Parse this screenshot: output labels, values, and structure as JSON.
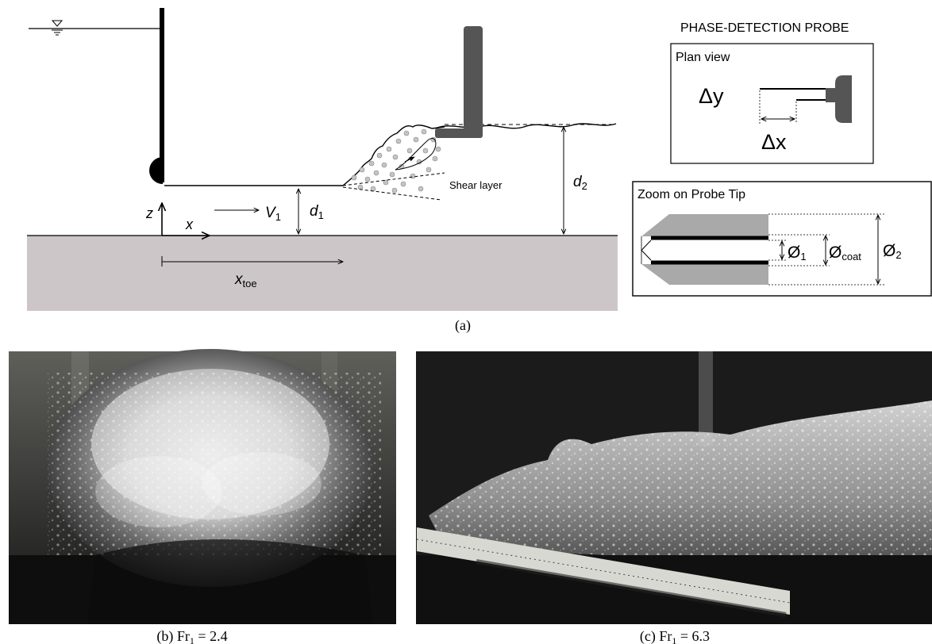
{
  "schematic": {
    "caption": "(a)",
    "labels": {
      "z": "z",
      "x": "x",
      "V": "V",
      "V_sub": "1",
      "d1": "d",
      "d1_sub": "1",
      "d2": "d",
      "d2_sub": "2",
      "xtoe": "x",
      "xtoe_sub": "toe",
      "shear": "Shear layer"
    }
  },
  "probe": {
    "title": "PHASE-DETECTION PROBE",
    "plan_title": "Plan view",
    "dy": "Δy",
    "dx": "Δx",
    "zoom_title": "Zoom on Probe Tip",
    "d1": "Ø",
    "d1_sub": "1",
    "dcoat": "Ø",
    "dcoat_sub": "coat",
    "d2": "Ø",
    "d2_sub": "2"
  },
  "photos": {
    "b_caption_pre": "(b) Fr",
    "b_sub": "1",
    "b_caption_post": " = 2.4",
    "c_caption_pre": "(c) Fr",
    "c_sub": "1",
    "c_caption_post": " = 6.3"
  },
  "colors": {
    "channel_bed": "#cdc6c9",
    "probe_grey": "#555555",
    "bubble_fill": "#c4c4c4",
    "photo_dark": "#1b1b1b"
  }
}
